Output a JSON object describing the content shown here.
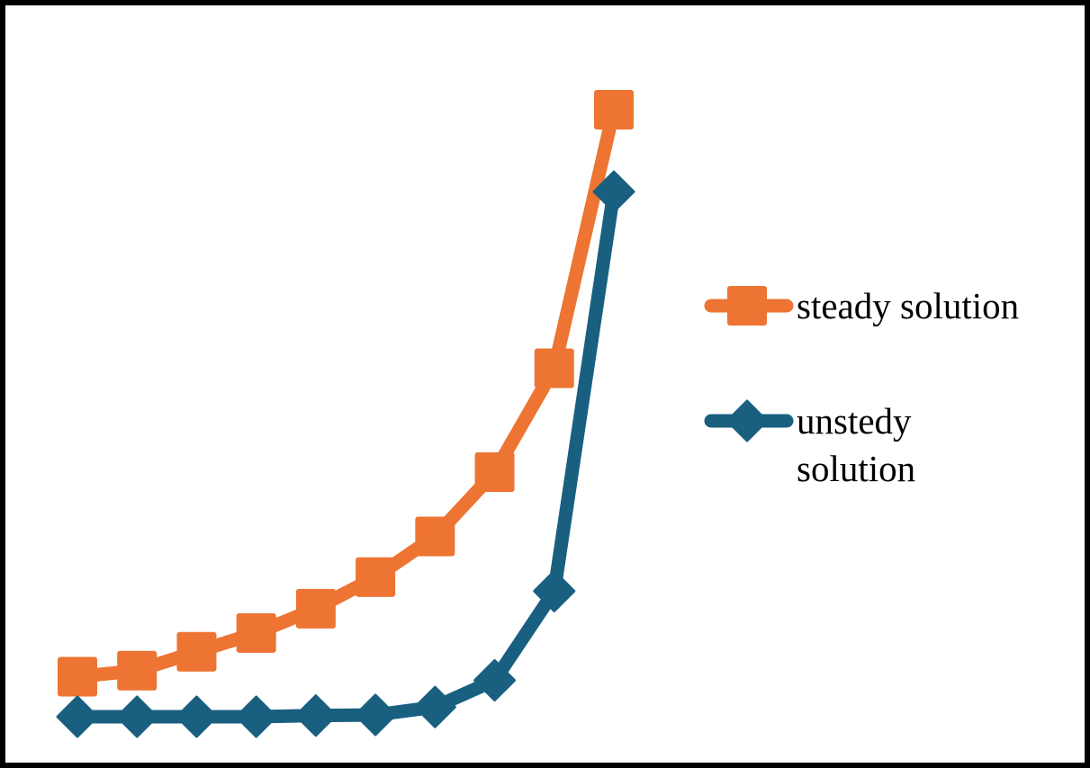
{
  "chart_data": {
    "type": "line",
    "title": "",
    "xlabel": "",
    "ylabel": "",
    "grid": false,
    "axes_visible": false,
    "legend_placement": "right",
    "x": [
      1,
      2,
      3,
      4,
      5,
      6,
      7,
      8,
      9,
      10
    ],
    "ylim": [
      0,
      100
    ],
    "series": [
      {
        "name": "steady solution",
        "color": "#ED7432",
        "marker": "square",
        "legend_lines": [
          "steady solution"
        ],
        "values": [
          6.6,
          7.6,
          10.7,
          13.8,
          17.8,
          23.0,
          29.7,
          40.3,
          57.4,
          100.0
        ]
      },
      {
        "name": "unstedy solution",
        "color": "#195F80",
        "marker": "diamond",
        "legend_lines": [
          "unstedy",
          "solution"
        ],
        "values": [
          0.0,
          0.0,
          0.0,
          0.0,
          0.2,
          0.3,
          1.6,
          6.0,
          20.7,
          86.5
        ]
      }
    ]
  }
}
